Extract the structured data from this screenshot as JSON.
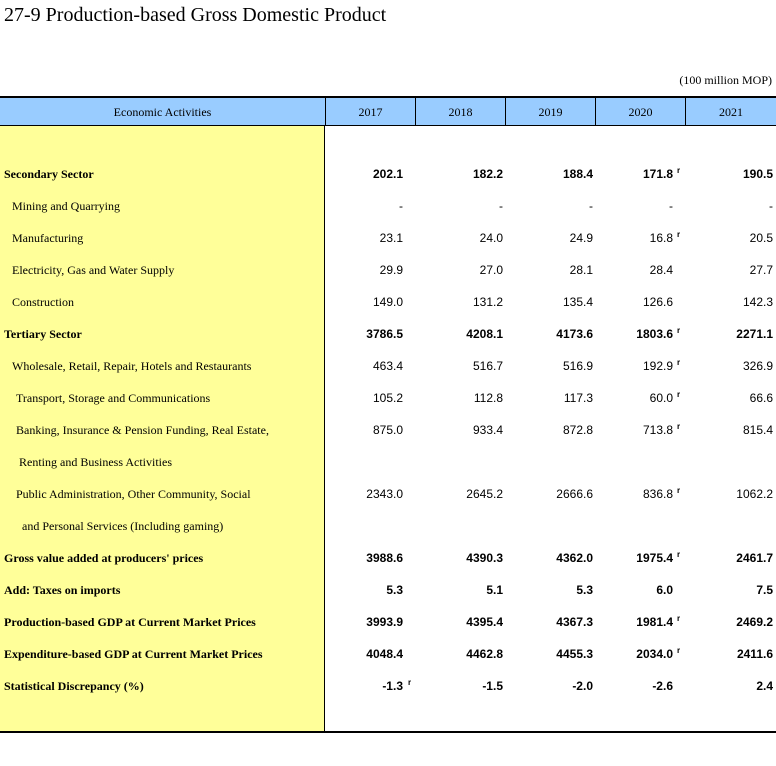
{
  "title": "27-9  Production-based Gross Domestic Product",
  "unit": "(100 million MOP)",
  "header": {
    "activity_label": "Economic Activities",
    "years": [
      "2017",
      "2018",
      "2019",
      "2020",
      "2021"
    ]
  },
  "rows": [
    {
      "label": "Secondary Sector",
      "values": [
        "202.1",
        "182.2",
        "188.4",
        "171.8",
        "190.5"
      ],
      "marks": [
        "",
        "",
        "",
        "r",
        ""
      ]
    },
    {
      "label": "Mining and Quarrying",
      "values": [
        "-",
        "-",
        "-",
        "-",
        "-"
      ],
      "marks": [
        "",
        "",
        "",
        "",
        ""
      ]
    },
    {
      "label": "Manufacturing",
      "values": [
        "23.1",
        "24.0",
        "24.9",
        "16.8",
        "20.5"
      ],
      "marks": [
        "",
        "",
        "",
        "r",
        ""
      ]
    },
    {
      "label": "Electricity, Gas and Water Supply",
      "values": [
        "29.9",
        "27.0",
        "28.1",
        "28.4",
        "27.7"
      ],
      "marks": [
        "",
        "",
        "",
        "",
        ""
      ]
    },
    {
      "label": "Construction",
      "values": [
        "149.0",
        "131.2",
        "135.4",
        "126.6",
        "142.3"
      ],
      "marks": [
        "",
        "",
        "",
        "",
        ""
      ]
    },
    {
      "label": "Tertiary Sector",
      "values": [
        "3786.5",
        "4208.1",
        "4173.6",
        "1803.6",
        "2271.1"
      ],
      "marks": [
        "",
        "",
        "",
        "r",
        ""
      ]
    },
    {
      "label": "Wholesale, Retail, Repair, Hotels and Restaurants",
      "values": [
        "463.4",
        "516.7",
        "516.9",
        "192.9",
        "326.9"
      ],
      "marks": [
        "",
        "",
        "",
        "r",
        ""
      ]
    },
    {
      "label": "Transport, Storage and Communications",
      "values": [
        "105.2",
        "112.8",
        "117.3",
        "60.0",
        "66.6"
      ],
      "marks": [
        "",
        "",
        "",
        "r",
        ""
      ]
    },
    {
      "label": "Banking, Insurance & Pension Funding, Real Estate,",
      "values": [
        "875.0",
        "933.4",
        "872.8",
        "713.8",
        "815.4"
      ],
      "marks": [
        "",
        "",
        "",
        "r",
        ""
      ]
    },
    {
      "label": "Renting and Business Activities",
      "values": [
        "",
        "",
        "",
        "",
        ""
      ],
      "marks": [
        "",
        "",
        "",
        "",
        ""
      ]
    },
    {
      "label": "Public Administration, Other Community, Social",
      "values": [
        "2343.0",
        "2645.2",
        "2666.6",
        "836.8",
        "1062.2"
      ],
      "marks": [
        "",
        "",
        "",
        "r",
        ""
      ]
    },
    {
      "label": "and Personal Services (Including gaming)",
      "values": [
        "",
        "",
        "",
        "",
        ""
      ],
      "marks": [
        "",
        "",
        "",
        "",
        ""
      ]
    },
    {
      "label": "Gross value added at producers' prices",
      "values": [
        "3988.6",
        "4390.3",
        "4362.0",
        "1975.4",
        "2461.7"
      ],
      "marks": [
        "",
        "",
        "",
        "r",
        ""
      ]
    },
    {
      "label": "Add: Taxes on imports",
      "values": [
        "5.3",
        "5.1",
        "5.3",
        "6.0",
        "7.5"
      ],
      "marks": [
        "",
        "",
        "",
        "",
        ""
      ]
    },
    {
      "label": "Production-based GDP at Current Market Prices",
      "values": [
        "3993.9",
        "4395.4",
        "4367.3",
        "1981.4",
        "2469.2"
      ],
      "marks": [
        "",
        "",
        "",
        "r",
        ""
      ]
    },
    {
      "label": "Expenditure-based GDP at Current Market Prices",
      "values": [
        "4048.4",
        "4462.8",
        "4455.3",
        "2034.0",
        "2411.6"
      ],
      "marks": [
        "",
        "",
        "",
        "r",
        ""
      ]
    },
    {
      "label": "Statistical Discrepancy (%)",
      "values": [
        "-1.3",
        "-1.5",
        "-2.0",
        "-2.6",
        "2.4"
      ],
      "marks": [
        "r",
        "",
        "",
        "",
        ""
      ]
    }
  ]
}
